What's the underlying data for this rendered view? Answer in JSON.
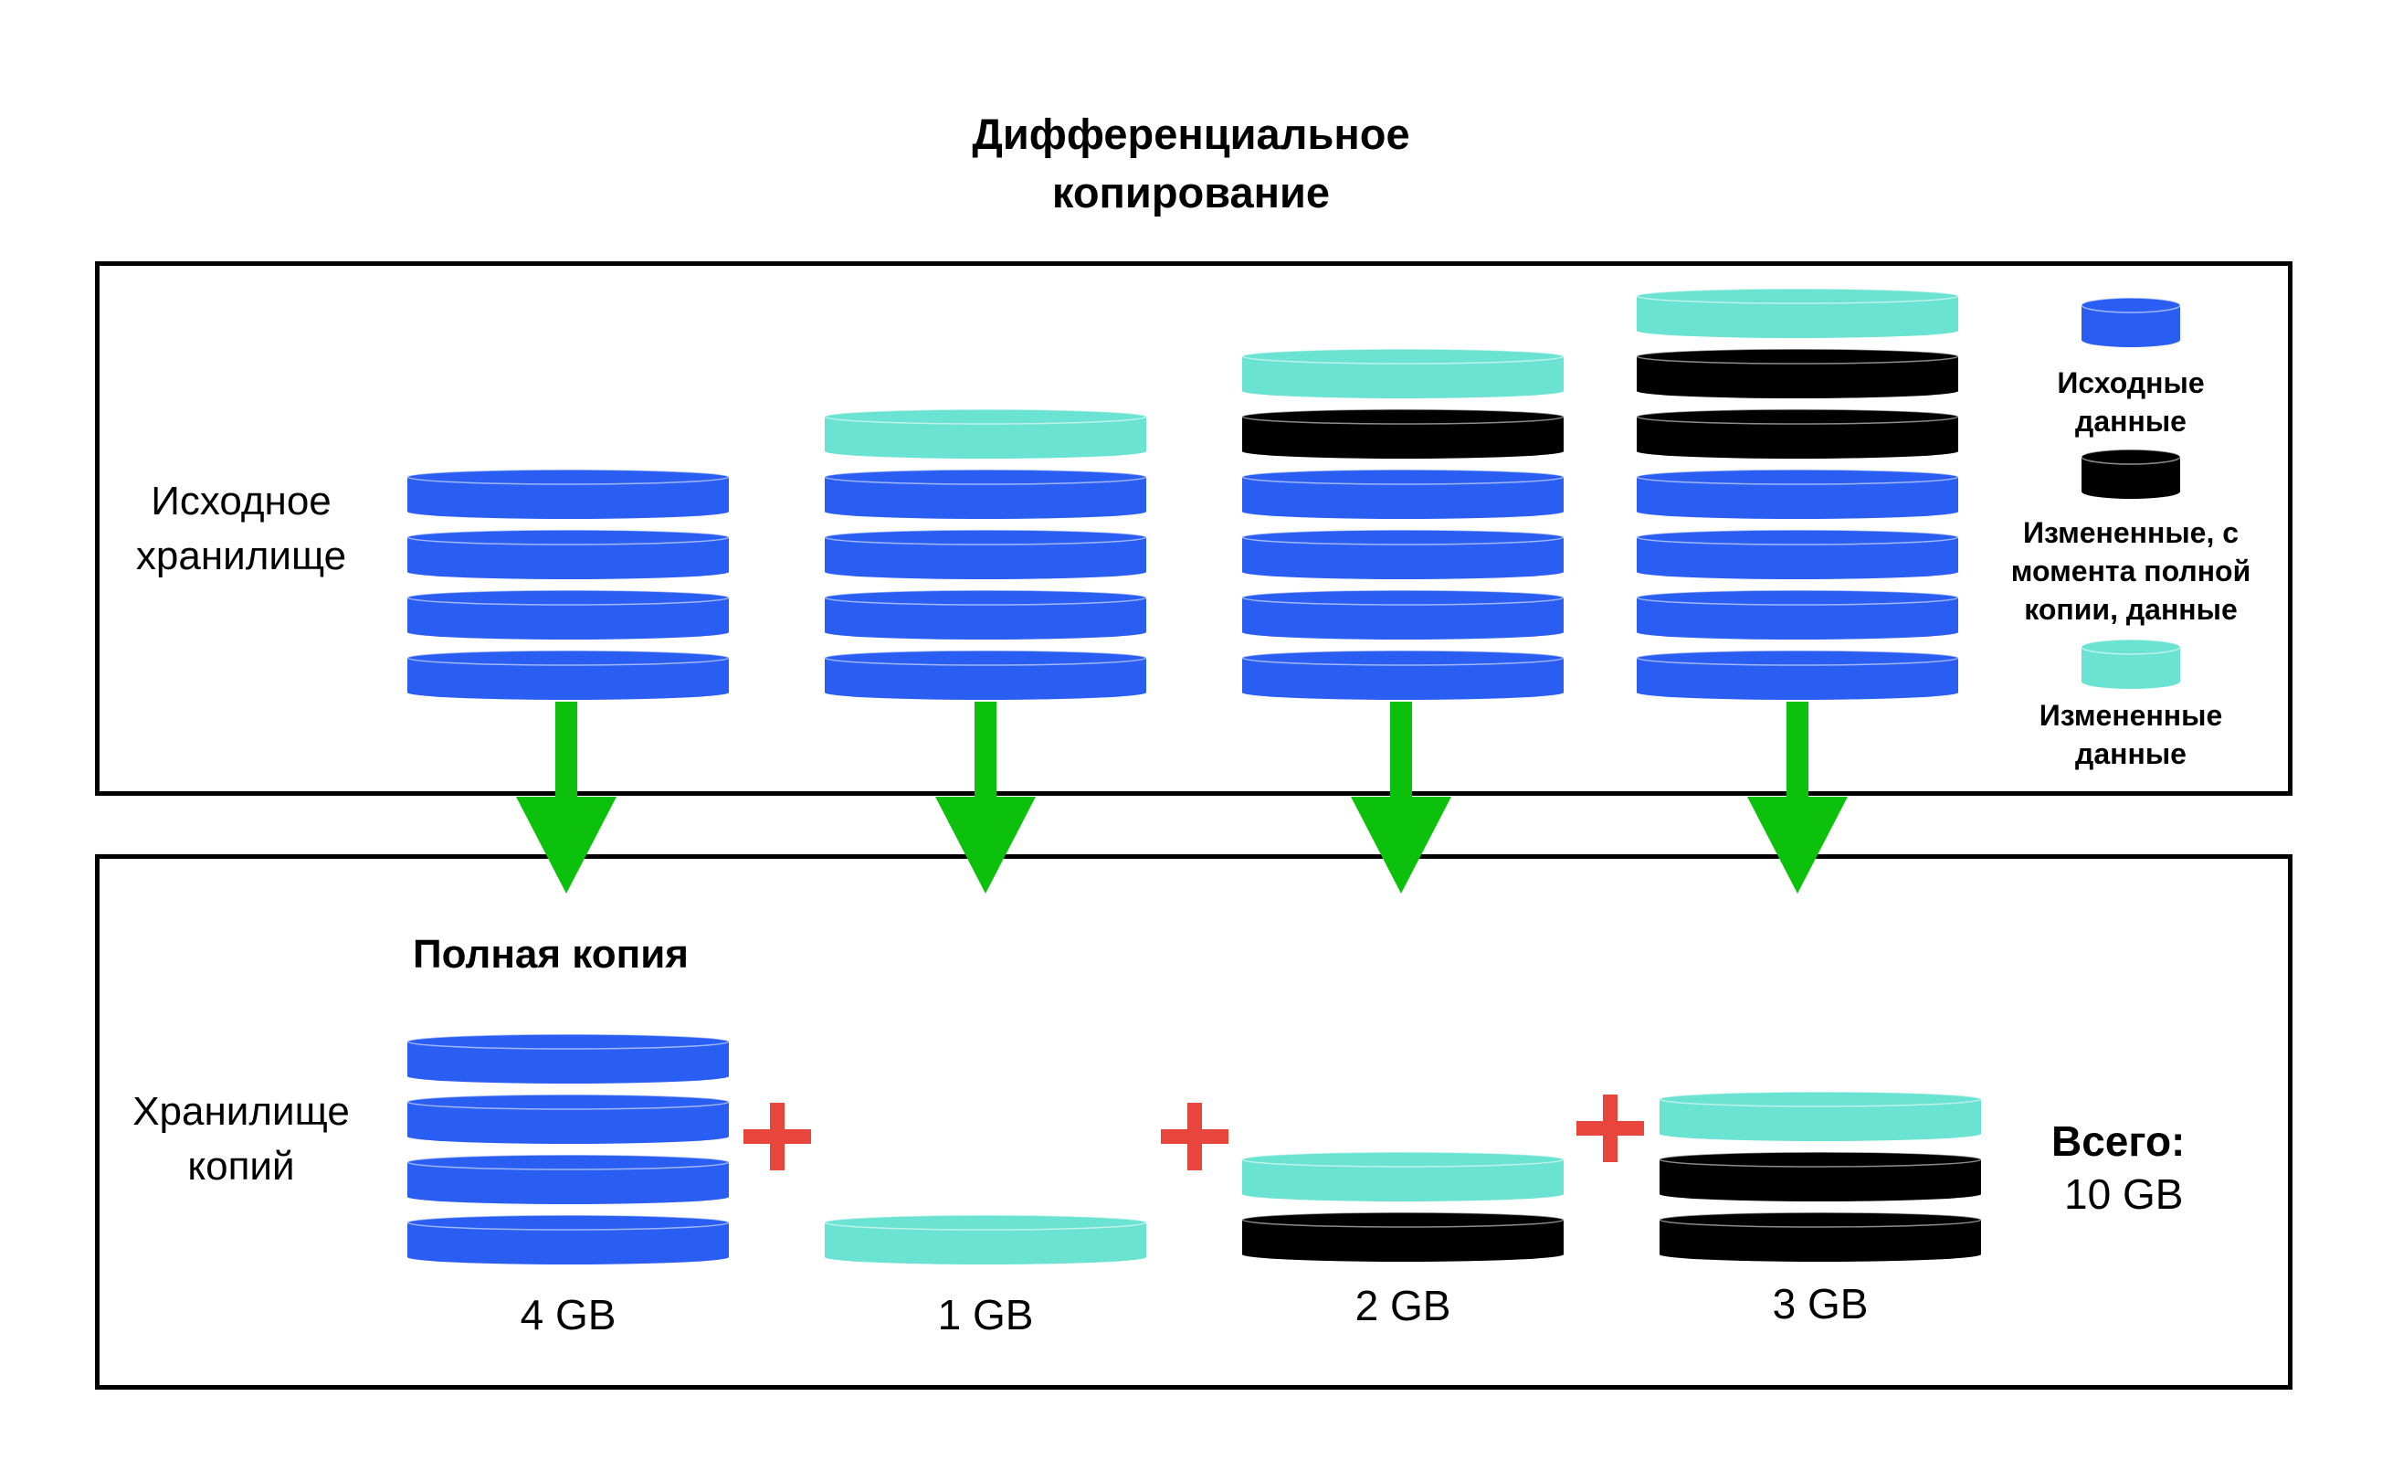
{
  "title_line1": "Дифференциальное",
  "title_line2": "копирование",
  "source_storage": {
    "line1": "Исходное",
    "line2": "хранилище"
  },
  "backup_storage": {
    "line1": "Хранилище",
    "line2": "копий"
  },
  "full_copy_label": "Полная копия",
  "legend": [
    {
      "color": "#2a5ef3",
      "line1": "Исходные",
      "line2": "данные"
    },
    {
      "color": "#000000",
      "line1": "Измененные, с",
      "line2": "момента полной",
      "line3": "копии, данные"
    },
    {
      "color": "#6be3d2",
      "line1": "Измененные",
      "line2": "данные"
    }
  ],
  "colors": {
    "original": "#2a5ef3",
    "changed_since_full": "#000000",
    "changed": "#6be3d2",
    "arrow": "#0bc10b",
    "plus": "#e8463c"
  },
  "source_stacks": [
    [
      "original",
      "original",
      "original",
      "original"
    ],
    [
      "original",
      "original",
      "original",
      "original",
      "changed"
    ],
    [
      "original",
      "original",
      "original",
      "original",
      "changed_since_full",
      "changed"
    ],
    [
      "original",
      "original",
      "original",
      "original",
      "changed_since_full",
      "changed_since_full",
      "changed"
    ]
  ],
  "backup_stacks": [
    [
      "original",
      "original",
      "original",
      "original"
    ],
    [
      "changed"
    ],
    [
      "changed_since_full",
      "changed"
    ],
    [
      "changed_since_full",
      "changed_since_full",
      "changed"
    ]
  ],
  "sizes": [
    "4 GB",
    "1 GB",
    "2 GB",
    "3 GB"
  ],
  "total_label": "Всего:",
  "total_value": "10 GB"
}
